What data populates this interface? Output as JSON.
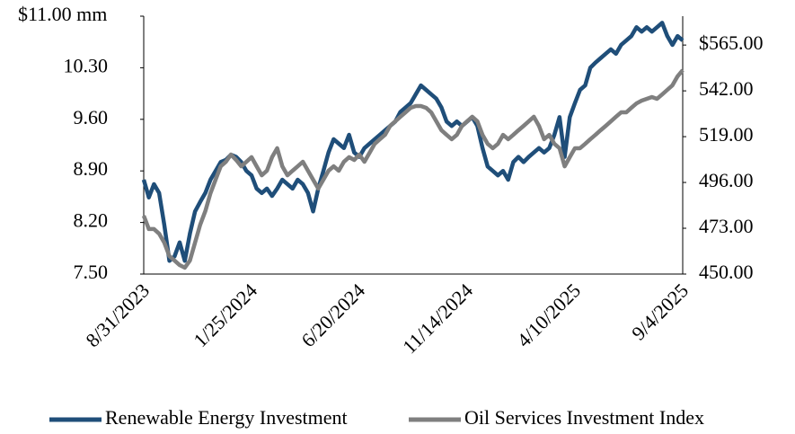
{
  "chart_data": {
    "type": "line",
    "categories": [
      "8/31/2023",
      null,
      null,
      null,
      null,
      null,
      null,
      null,
      null,
      null,
      null,
      null,
      null,
      null,
      null,
      null,
      null,
      null,
      null,
      null,
      null,
      "1/25/2024",
      null,
      null,
      null,
      null,
      null,
      null,
      null,
      null,
      null,
      null,
      null,
      null,
      null,
      null,
      null,
      null,
      null,
      null,
      null,
      null,
      "6/20/2024",
      null,
      null,
      null,
      null,
      null,
      null,
      null,
      null,
      null,
      null,
      null,
      null,
      null,
      null,
      null,
      null,
      null,
      null,
      null,
      null,
      "11/14/2024",
      null,
      null,
      null,
      null,
      null,
      null,
      null,
      null,
      null,
      null,
      null,
      null,
      null,
      null,
      null,
      null,
      null,
      null,
      null,
      null,
      "4/10/2025",
      null,
      null,
      null,
      null,
      null,
      null,
      null,
      null,
      null,
      null,
      null,
      null,
      null,
      null,
      null,
      null,
      null,
      null,
      null,
      null,
      "9/4/2025"
    ],
    "series": [
      {
        "name": "Renewable Energy Investment",
        "color": "#1f4e79",
        "axis": "y",
        "values": [
          8.78,
          8.54,
          8.72,
          8.6,
          8.17,
          7.68,
          7.74,
          7.93,
          7.68,
          8.05,
          8.35,
          8.48,
          8.6,
          8.78,
          8.9,
          9.02,
          9.05,
          9.12,
          9.09,
          9.02,
          8.9,
          8.84,
          8.66,
          8.6,
          8.66,
          8.56,
          8.66,
          8.78,
          8.72,
          8.66,
          8.78,
          8.72,
          8.6,
          8.35,
          8.66,
          8.9,
          9.15,
          9.33,
          9.27,
          9.21,
          9.39,
          9.15,
          9.09,
          9.21,
          9.27,
          9.33,
          9.39,
          9.45,
          9.51,
          9.57,
          9.7,
          9.76,
          9.82,
          9.94,
          10.06,
          10.0,
          9.94,
          9.88,
          9.76,
          9.57,
          9.51,
          9.57,
          9.51,
          9.57,
          9.63,
          9.51,
          9.21,
          8.96,
          8.9,
          8.84,
          8.9,
          8.78,
          9.02,
          9.09,
          9.02,
          9.09,
          9.15,
          9.21,
          9.15,
          9.21,
          9.39,
          9.63,
          9.09,
          9.63,
          9.82,
          10.0,
          10.06,
          10.3,
          10.37,
          10.43,
          10.49,
          10.55,
          10.49,
          10.61,
          10.67,
          10.73,
          10.85,
          10.79,
          10.85,
          10.79,
          10.85,
          10.91,
          10.73,
          10.61,
          10.73,
          10.67
        ]
      },
      {
        "name": "Oil Services Investment Index",
        "color": "#7f7f7f",
        "axis": "y2",
        "values": [
          479.3,
          472.6,
          472.6,
          470.3,
          465.8,
          459.0,
          456.8,
          454.5,
          453.2,
          456.8,
          465.8,
          474.8,
          481.6,
          490.6,
          497.4,
          504.1,
          506.4,
          510.0,
          507.3,
          504.1,
          506.4,
          508.7,
          504.1,
          499.6,
          501.9,
          508.7,
          513.2,
          504.1,
          499.6,
          501.9,
          504.1,
          506.4,
          501.9,
          497.4,
          492.9,
          497.4,
          501.9,
          504.1,
          501.9,
          506.4,
          508.7,
          507.3,
          510.0,
          506.4,
          510.9,
          515.4,
          517.7,
          519.9,
          524.4,
          526.7,
          529.0,
          531.2,
          533.5,
          534.4,
          534.4,
          533.5,
          531.2,
          526.7,
          522.2,
          519.9,
          517.7,
          519.9,
          524.4,
          526.7,
          529.0,
          526.7,
          519.9,
          515.4,
          513.2,
          515.4,
          519.9,
          517.7,
          519.9,
          522.2,
          524.4,
          526.7,
          529.0,
          524.4,
          517.7,
          519.9,
          515.4,
          513.2,
          504.1,
          508.7,
          513.2,
          513.2,
          515.4,
          517.7,
          519.9,
          522.2,
          524.4,
          526.7,
          529.0,
          531.2,
          531.2,
          533.5,
          535.7,
          537.1,
          538.0,
          538.9,
          538.0,
          540.2,
          542.5,
          544.8,
          549.3,
          552.4
        ]
      }
    ],
    "ylim": [
      7.5,
      11.0
    ],
    "yticks": [
      {
        "value": 7.5,
        "label": "7.50"
      },
      {
        "value": 8.2,
        "label": "8.20"
      },
      {
        "value": 8.9,
        "label": "8.90"
      },
      {
        "value": 9.6,
        "label": "9.60"
      },
      {
        "value": 10.3,
        "label": "10.30"
      },
      {
        "value": 11.0,
        "label": "$11.00 mm"
      }
    ],
    "y2lim": [
      450,
      579.5
    ],
    "y2ticks": [
      {
        "value": 450,
        "label": "450.00"
      },
      {
        "value": 473,
        "label": "473.00"
      },
      {
        "value": 496,
        "label": "496.00"
      },
      {
        "value": 519,
        "label": "519.00"
      },
      {
        "value": 542,
        "label": "542.00"
      },
      {
        "value": 565,
        "label": "$565.00"
      }
    ],
    "legend": "bottom"
  }
}
